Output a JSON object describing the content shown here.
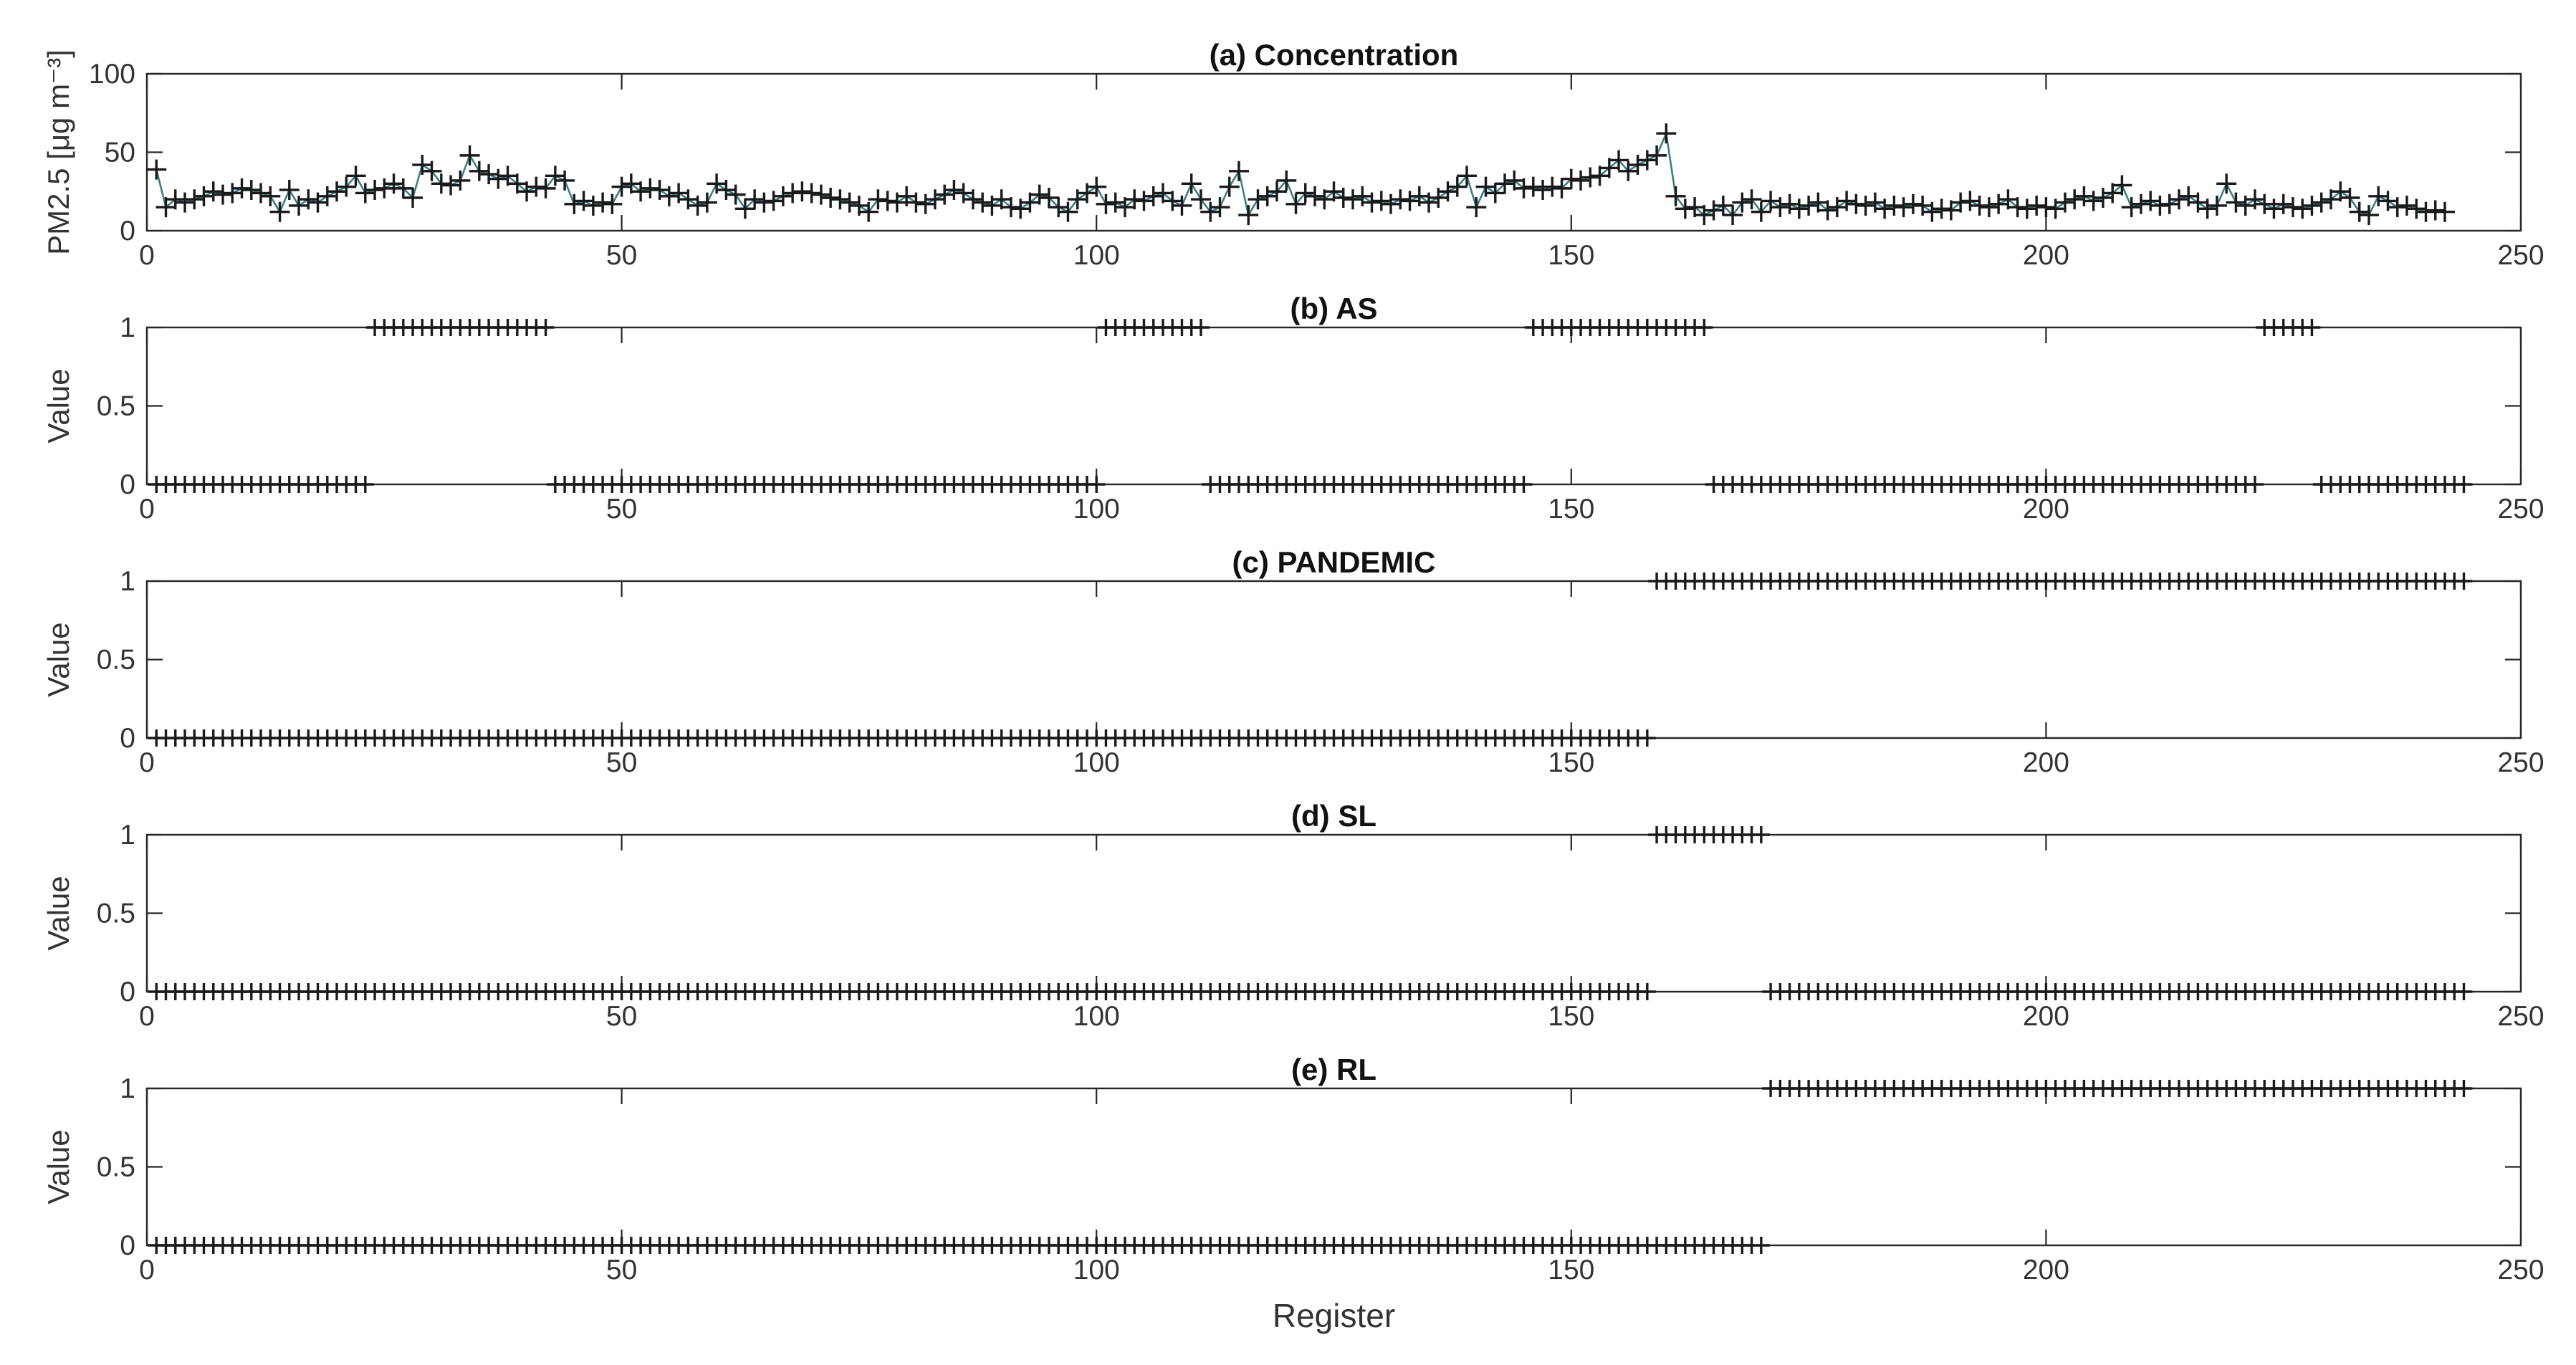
{
  "figure": {
    "xlabel": "Register",
    "colors": {
      "axis": "#262626",
      "marker": "#1a1a1a",
      "line": "#3d7f86"
    }
  },
  "chart_data": [
    {
      "type": "line",
      "title": "(a) Concentration",
      "ylabel": "PM2.5 [μg m⁻³]",
      "xlim": [
        0,
        250
      ],
      "ylim": [
        0,
        100
      ],
      "xticks": [
        0,
        50,
        100,
        150,
        200,
        250
      ],
      "yticks": [
        0,
        50,
        100
      ],
      "ytick_labels": [
        "0",
        "50",
        "100"
      ],
      "marker": "+",
      "line": true,
      "series": [
        {
          "x_start": 1,
          "values": [
            39,
            15,
            20,
            18,
            20,
            22,
            25,
            23,
            24,
            27,
            26,
            24,
            22,
            12,
            26,
            16,
            20,
            18,
            22,
            25,
            28,
            35,
            24,
            26,
            27,
            30,
            27,
            21,
            42,
            38,
            30,
            29,
            32,
            48,
            38,
            36,
            33,
            35,
            30,
            25,
            28,
            27,
            35,
            32,
            17,
            19,
            16,
            18,
            17,
            28,
            30,
            25,
            27,
            26,
            22,
            24,
            20,
            16,
            18,
            30,
            26,
            23,
            14,
            20,
            18,
            19,
            22,
            24,
            25,
            24,
            23,
            21,
            20,
            18,
            16,
            12,
            20,
            19,
            18,
            22,
            18,
            17,
            20,
            23,
            26,
            24,
            20,
            18,
            16,
            20,
            15,
            14,
            18,
            23,
            21,
            15,
            12,
            20,
            24,
            28,
            17,
            18,
            15,
            20,
            19,
            22,
            24,
            19,
            16,
            30,
            20,
            12,
            15,
            28,
            38,
            10,
            20,
            22,
            25,
            32,
            17,
            24,
            22,
            20,
            25,
            21,
            20,
            22,
            18,
            19,
            17,
            20,
            19,
            22,
            18,
            21,
            25,
            28,
            35,
            15,
            28,
            24,
            30,
            32,
            27,
            28,
            26,
            28,
            27,
            33,
            32,
            34,
            35,
            40,
            45,
            38,
            42,
            45,
            48,
            62,
            22,
            14,
            15,
            10,
            13,
            16,
            10,
            18,
            20,
            12,
            19,
            15,
            17,
            14,
            16,
            18,
            13,
            15,
            19,
            17,
            16,
            18,
            14,
            16,
            15,
            17,
            16,
            12,
            14,
            13,
            18,
            19,
            16,
            15,
            17,
            20,
            15,
            14,
            16,
            15,
            14,
            18,
            20,
            22,
            19,
            21,
            24,
            29,
            15,
            17,
            19,
            16,
            17,
            20,
            22,
            18,
            14,
            16,
            30,
            18,
            16,
            20,
            17,
            14,
            17,
            15,
            14,
            16,
            18,
            20,
            25,
            21,
            12,
            10,
            22,
            19,
            15,
            16,
            14,
            12,
            13,
            12
          ]
        }
      ]
    },
    {
      "type": "scatter",
      "title": "(b) AS",
      "ylabel": "Value",
      "xlim": [
        0,
        250
      ],
      "ylim": [
        0,
        1
      ],
      "xticks": [
        0,
        50,
        100,
        150,
        200,
        250
      ],
      "yticks": [
        0,
        0.5,
        1
      ],
      "ytick_labels": [
        "0",
        "0.5",
        "1"
      ],
      "marker": "+",
      "x_range": [
        1,
        244
      ],
      "ones_ranges": [
        [
          24,
          42
        ],
        [
          101,
          111
        ],
        [
          146,
          164
        ],
        [
          223,
          228
        ]
      ]
    },
    {
      "type": "scatter",
      "title": "(c) PANDEMIC",
      "ylabel": "Value",
      "xlim": [
        0,
        250
      ],
      "ylim": [
        0,
        1
      ],
      "xticks": [
        0,
        50,
        100,
        150,
        200,
        250
      ],
      "yticks": [
        0,
        0.5,
        1
      ],
      "ytick_labels": [
        "0",
        "0.5",
        "1"
      ],
      "marker": "+",
      "x_range": [
        1,
        244
      ],
      "ones_ranges": [
        [
          159,
          244
        ]
      ]
    },
    {
      "type": "scatter",
      "title": "(d) SL",
      "ylabel": "Value",
      "xlim": [
        0,
        250
      ],
      "ylim": [
        0,
        1
      ],
      "xticks": [
        0,
        50,
        100,
        150,
        200,
        250
      ],
      "yticks": [
        0,
        0.5,
        1
      ],
      "ytick_labels": [
        "0",
        "0.5",
        "1"
      ],
      "marker": "+",
      "x_range": [
        1,
        244
      ],
      "ones_ranges": [
        [
          159,
          170
        ]
      ]
    },
    {
      "type": "scatter",
      "title": "(e) RL",
      "ylabel": "Value",
      "xlim": [
        0,
        250
      ],
      "ylim": [
        0,
        1
      ],
      "xticks": [
        0,
        50,
        100,
        150,
        200,
        250
      ],
      "yticks": [
        0,
        0.5,
        1
      ],
      "ytick_labels": [
        "0",
        "0.5",
        "1"
      ],
      "marker": "+",
      "x_range": [
        1,
        244
      ],
      "ones_ranges": [
        [
          171,
          244
        ]
      ]
    }
  ]
}
